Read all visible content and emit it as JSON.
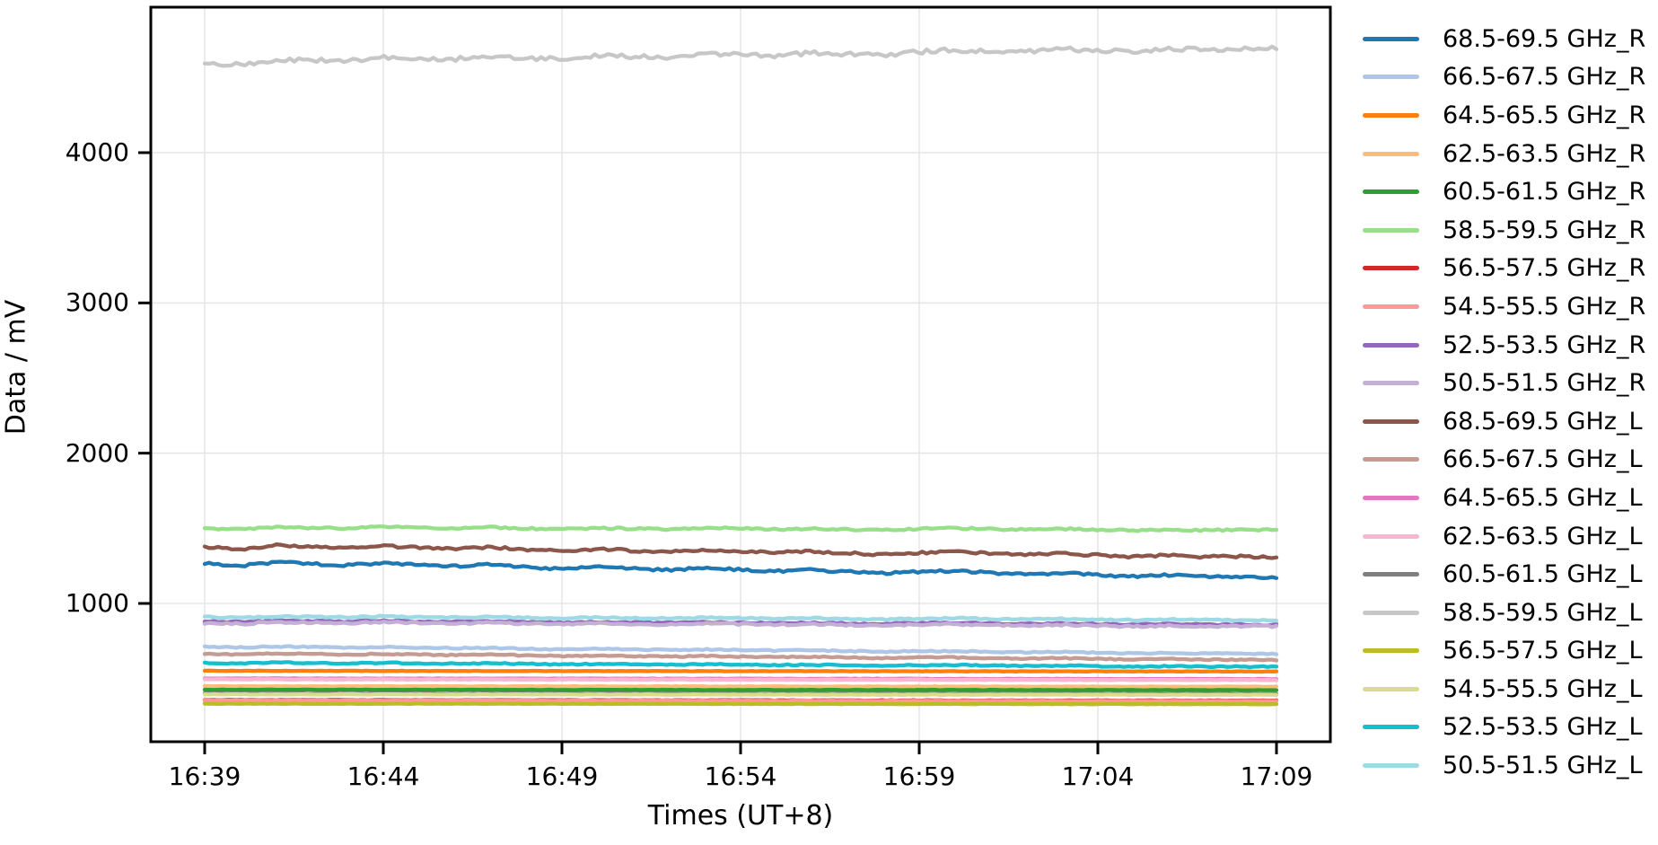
{
  "chart_data": {
    "type": "line",
    "title": "",
    "xlabel": "Times (UT+8)",
    "ylabel": "Data / mV",
    "x_ticks": [
      "16:39",
      "16:44",
      "16:49",
      "16:54",
      "16:59",
      "17:04",
      "17:09"
    ],
    "y_ticks": [
      1000,
      2000,
      3000,
      4000
    ],
    "x_span_minutes": 30,
    "ylim": [
      80,
      4970
    ],
    "grid": true,
    "legend_position": "center right outside",
    "axis_color": "#000000",
    "grid_color": "#e5e5e5",
    "series": [
      {
        "name": "68.5-69.5 GHz_R",
        "color": "#1f77b4",
        "noise": 8,
        "values": [
          1265,
          1250,
          1275,
          1264,
          1254,
          1269,
          1256,
          1247,
          1258,
          1243,
          1229,
          1244,
          1231,
          1222,
          1237,
          1226,
          1214,
          1223,
          1210,
          1199,
          1212,
          1217,
          1203,
          1194,
          1203,
          1190,
          1179,
          1190,
          1176,
          1179,
          1174
        ]
      },
      {
        "name": "66.5-67.5 GHz_R",
        "color": "#aec7e8",
        "noise": 4,
        "values": [
          712,
          707,
          714,
          710,
          706,
          710,
          705,
          702,
          704,
          699,
          694,
          698,
          694,
          690,
          694,
          690,
          686,
          688,
          683,
          679,
          682,
          683,
          679,
          675,
          677,
          672,
          668,
          671,
          666,
          666,
          664
        ]
      },
      {
        "name": "64.5-65.5 GHz_R",
        "color": "#ff7f0e",
        "noise": 1.5,
        "values": [
          552,
          547
        ]
      },
      {
        "name": "62.5-63.5 GHz_R",
        "color": "#ffbb78",
        "noise": 1.5,
        "values": [
          449,
          446
        ]
      },
      {
        "name": "60.5-61.5 GHz_R",
        "color": "#2ca02c",
        "noise": 1.5,
        "values": [
          426,
          423
        ]
      },
      {
        "name": "58.5-59.5 GHz_R",
        "color": "#98df8a",
        "noise": 6,
        "values": [
          1500,
          1492,
          1509,
          1503,
          1499,
          1510,
          1503,
          1499,
          1507,
          1499,
          1493,
          1503,
          1497,
          1493,
          1503,
          1498,
          1493,
          1499,
          1493,
          1488,
          1497,
          1501,
          1495,
          1491,
          1497,
          1491,
          1486,
          1493,
          1487,
          1490,
          1488
        ]
      },
      {
        "name": "56.5-57.5 GHz_R",
        "color": "#d62728",
        "noise": 1.5,
        "values": [
          357,
          354
        ]
      },
      {
        "name": "54.5-55.5 GHz_R",
        "color": "#ff9896",
        "noise": 1.5,
        "values": [
          354,
          351
        ]
      },
      {
        "name": "52.5-53.5 GHz_R",
        "color": "#9467bd",
        "noise": 5,
        "values": [
          882,
          876,
          887,
          883,
          879,
          886,
          881,
          878,
          882,
          877,
          872,
          878,
          873,
          870,
          876,
          872,
          868,
          872,
          867,
          863,
          869,
          871,
          866,
          863,
          867,
          862,
          858,
          863,
          858,
          859,
          858
        ]
      },
      {
        "name": "50.5-51.5 GHz_R",
        "color": "#c5b0d5",
        "noise": 6,
        "values": [
          870,
          863,
          876,
          872,
          868,
          876,
          870,
          866,
          873,
          866,
          860,
          868,
          862,
          859,
          867,
          862,
          857,
          862,
          857,
          852,
          859,
          862,
          856,
          853,
          858,
          852,
          847,
          853,
          848,
          850,
          848
        ]
      },
      {
        "name": "68.5-69.5 GHz_L",
        "color": "#8c564b",
        "noise": 8,
        "values": [
          1375,
          1361,
          1386,
          1376,
          1368,
          1383,
          1371,
          1363,
          1374,
          1360,
          1348,
          1363,
          1351,
          1343,
          1358,
          1348,
          1338,
          1347,
          1335,
          1325,
          1338,
          1344,
          1332,
          1323,
          1333,
          1321,
          1310,
          1322,
          1310,
          1313,
          1309
        ]
      },
      {
        "name": "66.5-67.5 GHz_L",
        "color": "#c49c94",
        "noise": 4,
        "values": [
          665,
          660,
          667,
          663,
          660,
          664,
          660,
          656,
          659,
          654,
          650,
          654,
          649,
          646,
          650,
          646,
          643,
          645,
          640,
          637,
          640,
          641,
          637,
          633,
          636,
          631,
          627,
          630,
          626,
          626,
          624
        ]
      },
      {
        "name": "64.5-65.5 GHz_L",
        "color": "#e377c2",
        "noise": 1.5,
        "values": [
          501,
          497
        ]
      },
      {
        "name": "62.5-63.5 GHz_L",
        "color": "#f7b6d2",
        "noise": 1.5,
        "values": [
          495,
          491
        ]
      },
      {
        "name": "60.5-61.5 GHz_L",
        "color": "#7f7f7f",
        "noise": 1.5,
        "values": [
          401,
          398
        ]
      },
      {
        "name": "58.5-59.5 GHz_L",
        "color": "#c7c7c7",
        "noise": 14,
        "values": [
          4595,
          4583,
          4621,
          4615,
          4610,
          4636,
          4627,
          4622,
          4643,
          4631,
          4622,
          4647,
          4638,
          4634,
          4659,
          4653,
          4646,
          4664,
          4655,
          4648,
          4671,
          4684,
          4675,
          4670,
          4689,
          4679,
          4672,
          4693,
          4684,
          4694,
          4695
        ]
      },
      {
        "name": "56.5-57.5 GHz_L",
        "color": "#bcbd22",
        "noise": 1.5,
        "values": [
          333,
          330
        ]
      },
      {
        "name": "54.5-55.5 GHz_L",
        "color": "#dbdb8d",
        "noise": 1.5,
        "values": [
          395,
          392
        ]
      },
      {
        "name": "52.5-53.5 GHz_L",
        "color": "#17becf",
        "noise": 4,
        "values": [
          604,
          600,
          607,
          604,
          601,
          606,
          602,
          599,
          602,
          598,
          594,
          598,
          594,
          592,
          596,
          593,
          590,
          592,
          588,
          585,
          589,
          591,
          587,
          584,
          587,
          583,
          579,
          583,
          579,
          580,
          578
        ]
      },
      {
        "name": "50.5-51.5 GHz_L",
        "color": "#9edae5",
        "noise": 5,
        "values": [
          910,
          905,
          915,
          911,
          908,
          914,
          910,
          906,
          911,
          906,
          901,
          908,
          903,
          900,
          906,
          902,
          898,
          902,
          898,
          894,
          899,
          902,
          897,
          894,
          898,
          893,
          889,
          894,
          890,
          891,
          890
        ]
      }
    ]
  }
}
